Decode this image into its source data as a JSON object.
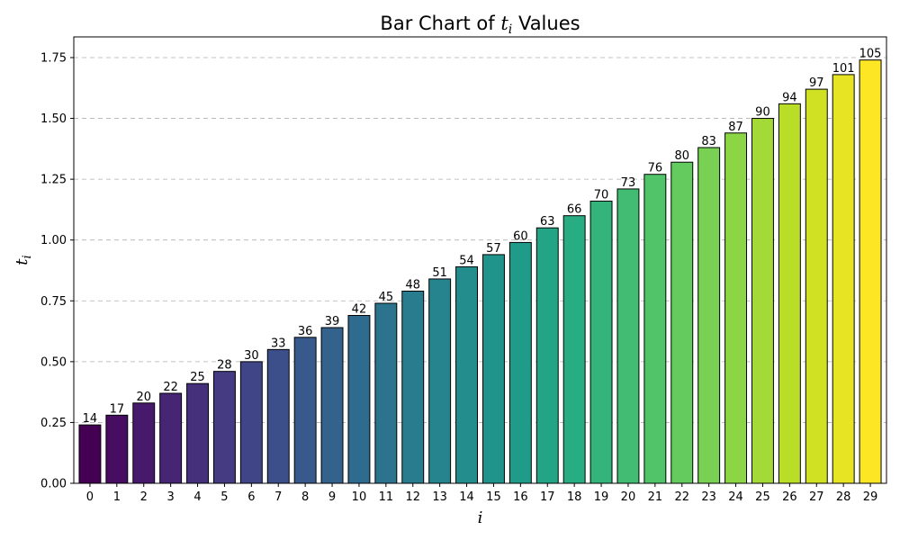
{
  "chart_data": {
    "type": "bar",
    "title_prefix": "Bar Chart of",
    "title_symbol": "t",
    "title_symbol_sub": "i",
    "title_suffix": "Values",
    "xlabel": "i",
    "ylabel_symbol": "t",
    "ylabel_sub": "i",
    "categories": [
      "0",
      "1",
      "2",
      "3",
      "4",
      "5",
      "6",
      "7",
      "8",
      "9",
      "10",
      "11",
      "12",
      "13",
      "14",
      "15",
      "16",
      "17",
      "18",
      "19",
      "20",
      "21",
      "22",
      "23",
      "24",
      "25",
      "26",
      "27",
      "28",
      "29"
    ],
    "values": [
      0.24,
      0.28,
      0.33,
      0.37,
      0.41,
      0.46,
      0.5,
      0.55,
      0.6,
      0.64,
      0.69,
      0.74,
      0.79,
      0.84,
      0.89,
      0.94,
      0.99,
      1.05,
      1.1,
      1.16,
      1.21,
      1.27,
      1.32,
      1.38,
      1.44,
      1.5,
      1.56,
      1.62,
      1.68,
      1.74
    ],
    "data_labels": [
      "14",
      "17",
      "20",
      "22",
      "25",
      "28",
      "30",
      "33",
      "36",
      "39",
      "42",
      "45",
      "48",
      "51",
      "54",
      "57",
      "60",
      "63",
      "66",
      "70",
      "73",
      "76",
      "80",
      "83",
      "87",
      "90",
      "94",
      "97",
      "101",
      "105"
    ],
    "y_ticks": [
      0,
      0.25,
      0.5,
      0.75,
      1.0,
      1.25,
      1.5,
      1.75
    ],
    "y_tick_labels": [
      "0.00",
      "0.25",
      "0.50",
      "0.75",
      "1.00",
      "1.25",
      "1.50",
      "1.75"
    ],
    "ylim": [
      0,
      1.835
    ],
    "grid": "y-dashed",
    "colormap": "viridis",
    "colors": [
      "#440154",
      "#482173",
      "#433e85",
      "#38588c",
      "#2d708e",
      "#25858e",
      "#1e9b8a",
      "#2ab07f",
      "#52c569",
      "#86d549",
      "#c2df23",
      "#fde725"
    ]
  }
}
